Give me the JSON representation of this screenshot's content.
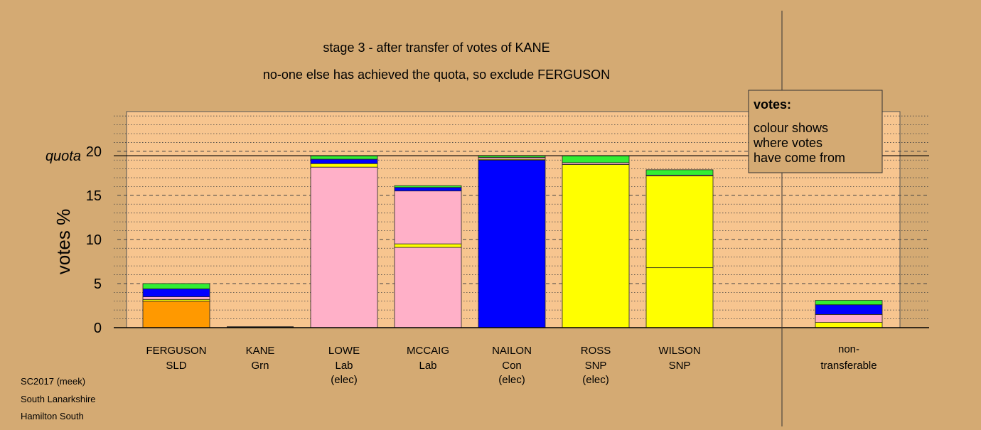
{
  "chart_data": {
    "type": "bar",
    "stacked": true,
    "title_line1": "stage 3 - after transfer of votes of KANE",
    "title_line2": "no-one else has achieved the quota, so exclude FERGUSON",
    "ylabel": "votes %",
    "quota_label": "quota",
    "quota_value": 19.5,
    "ylim": [
      0,
      24.5
    ],
    "yticks": [
      0,
      5,
      10,
      15,
      20
    ],
    "colors": {
      "background": "#d4aa73",
      "plot_area": "#f7c58f",
      "SLD": "#ff9900",
      "SNP": "#ffff00",
      "Lab": "#ffb0c8",
      "Con": "#0000ff",
      "Grn": "#33ee33"
    },
    "categories": [
      {
        "name": "FERGUSON",
        "party": "SLD",
        "note": "",
        "segments": [
          {
            "source": "SLD",
            "value": 3.0
          },
          {
            "source": "SNP",
            "value": 0.2
          },
          {
            "source": "Lab",
            "value": 0.3
          },
          {
            "source": "Con",
            "value": 0.9
          },
          {
            "source": "Grn",
            "value": 0.6
          }
        ]
      },
      {
        "name": "KANE",
        "party": "Grn",
        "note": "",
        "segments": []
      },
      {
        "name": "LOWE",
        "party": "Lab",
        "note": "(elec)",
        "segments": [
          {
            "source": "Lab",
            "value": 18.2
          },
          {
            "source": "SNP",
            "value": 0.4
          },
          {
            "source": "Con",
            "value": 0.5
          },
          {
            "source": "Grn",
            "value": 0.4
          }
        ]
      },
      {
        "name": "MCCAIG",
        "party": "Lab",
        "note": "",
        "segments": [
          {
            "source": "Lab",
            "value": 9.1
          },
          {
            "source": "SNP",
            "value": 0.4
          },
          {
            "source": "Lab",
            "value": 6.0
          },
          {
            "source": "Con",
            "value": 0.4
          },
          {
            "source": "Grn",
            "value": 0.2
          }
        ]
      },
      {
        "name": "NAILON",
        "party": "Con",
        "note": "(elec)",
        "segments": [
          {
            "source": "Con",
            "value": 19.0
          },
          {
            "source": "SNP",
            "value": 0.1
          },
          {
            "source": "Lab",
            "value": 0.2
          },
          {
            "source": "Grn",
            "value": 0.2
          }
        ]
      },
      {
        "name": "ROSS",
        "party": "SNP",
        "note": "(elec)",
        "segments": [
          {
            "source": "SNP",
            "value": 18.5
          },
          {
            "source": "Lab",
            "value": 0.2
          },
          {
            "source": "Grn",
            "value": 0.8
          }
        ]
      },
      {
        "name": "WILSON",
        "party": "SNP",
        "note": "",
        "segments": [
          {
            "source": "SNP",
            "value": 6.8
          },
          {
            "source": "SNP",
            "value": 10.4
          },
          {
            "source": "Lab",
            "value": 0.1
          },
          {
            "source": "Grn",
            "value": 0.6
          }
        ]
      }
    ],
    "nontransferable": {
      "label_line1": "non-",
      "label_line2": "transferable",
      "segments": [
        {
          "source": "SNP",
          "value": 0.6
        },
        {
          "source": "Lab",
          "value": 0.9
        },
        {
          "source": "Con",
          "value": 1.1
        },
        {
          "source": "Grn",
          "value": 0.5
        }
      ]
    }
  },
  "legend": {
    "title": "votes:",
    "lines": [
      "colour shows",
      "where votes",
      "have come from"
    ]
  },
  "footer": {
    "line1": "SC2017 (meek)",
    "line2": "South Lanarkshire",
    "line3": "Hamilton South"
  }
}
